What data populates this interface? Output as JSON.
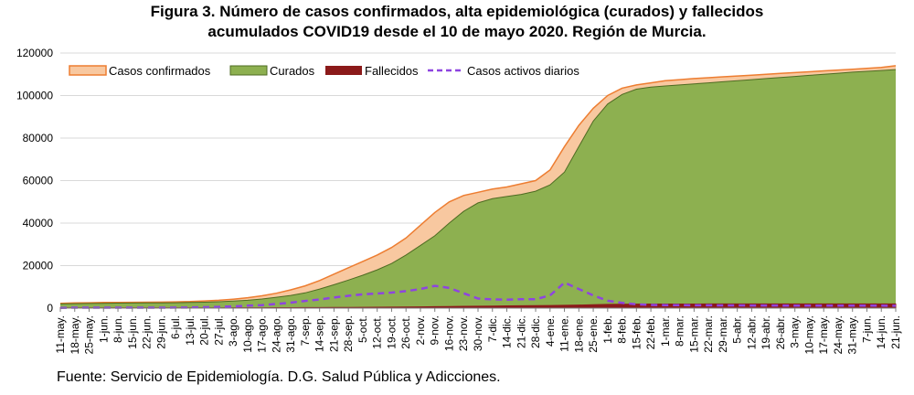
{
  "title_line1": "Figura 3. Número de casos confirmados, alta epidemiológica (curados) y fallecidos",
  "title_line2": "acumulados COVID19 desde el 10 de mayo 2020. Región de Murcia.",
  "source": "Fuente: Servicio de Epidemiología. D.G. Salud Pública y Adicciones.",
  "colors": {
    "confirmados_fill": "#f8c8a0",
    "confirmados_line": "#ed7d31",
    "curados_fill": "#8db050",
    "curados_line": "#4e6b22",
    "fallecidos": "#8b1a1a",
    "activos": "#8e44e0"
  },
  "chart_data": {
    "type": "area",
    "title": "Número de casos confirmados, alta epidemiológica (curados) y fallecidos acumulados COVID19 desde el 10 de mayo 2020. Región de Murcia.",
    "xlabel": "",
    "ylabel": "",
    "ylim": [
      0,
      120000
    ],
    "yticks": [
      "0",
      "20000",
      "40000",
      "60000",
      "80000",
      "100000",
      "120000"
    ],
    "ytick_values": [
      0,
      20000,
      40000,
      60000,
      80000,
      100000,
      120000
    ],
    "x_start": "11-may.",
    "x_end": "21-jun.",
    "categories": [
      "11-may.",
      "18-may.",
      "25-may.",
      "1-jun.",
      "8-jun.",
      "15-jun.",
      "22-jun.",
      "29-jun.",
      "6-jul.",
      "13-jul.",
      "20-jul.",
      "27-jul.",
      "3-ago.",
      "10-ago.",
      "17-ago.",
      "24-ago.",
      "31-ago.",
      "7-sep.",
      "14-sep.",
      "21-sep.",
      "28-sep.",
      "5-oct.",
      "12-oct.",
      "19-oct.",
      "26-oct.",
      "2-nov.",
      "9-nov.",
      "16-nov.",
      "23-nov.",
      "30-nov.",
      "7-dic.",
      "14-dic.",
      "21-dic.",
      "28-dic.",
      "4-ene.",
      "11-ene.",
      "18-ene.",
      "25-ene.",
      "1-feb.",
      "8-feb.",
      "15-feb.",
      "22-feb.",
      "1-mar.",
      "8-mar.",
      "15-mar.",
      "22-mar.",
      "29-mar.",
      "5-abr.",
      "12-abr.",
      "19-abr.",
      "26-abr.",
      "3-may.",
      "10-may.",
      "17-may.",
      "24-may.",
      "31-may.",
      "7-jun.",
      "14-jun.",
      "21-jun."
    ],
    "legend": [
      "Casos confirmados",
      "Curados",
      "Fallecidos",
      "Casos activos diarios"
    ],
    "legend_position": "top-left",
    "series": [
      {
        "name": "Casos confirmados",
        "kind": "area",
        "values": [
          2300,
          2450,
          2550,
          2650,
          2700,
          2750,
          2800,
          2850,
          2950,
          3100,
          3400,
          3700,
          4200,
          4900,
          5800,
          7000,
          8600,
          10500,
          13000,
          16000,
          19000,
          22000,
          25000,
          28500,
          33000,
          39000,
          45000,
          50000,
          53000,
          54500,
          56000,
          57000,
          58500,
          60000,
          65000,
          76000,
          86000,
          94000,
          100000,
          103500,
          105000,
          106000,
          107000,
          107500,
          108000,
          108400,
          108800,
          109200,
          109600,
          110000,
          110400,
          110800,
          111200,
          111600,
          112000,
          112400,
          112800,
          113200,
          114000
        ]
      },
      {
        "name": "Curados",
        "kind": "area",
        "values": [
          2000,
          2100,
          2200,
          2300,
          2350,
          2400,
          2450,
          2500,
          2550,
          2650,
          2800,
          3000,
          3300,
          3700,
          4300,
          5100,
          6000,
          7200,
          9000,
          11000,
          13200,
          15500,
          18000,
          21000,
          25000,
          29500,
          34000,
          40000,
          45500,
          49500,
          51500,
          52500,
          53500,
          55000,
          58000,
          64000,
          76000,
          88000,
          96000,
          100500,
          103000,
          104000,
          104500,
          105000,
          105500,
          106000,
          106500,
          107000,
          107500,
          108000,
          108500,
          109000,
          109500,
          110000,
          110500,
          111000,
          111400,
          111800,
          112200
        ]
      },
      {
        "name": "Fallecidos",
        "kind": "area",
        "values": [
          150,
          150,
          150,
          150,
          150,
          150,
          150,
          150,
          150,
          150,
          150,
          150,
          160,
          170,
          180,
          200,
          220,
          240,
          270,
          300,
          340,
          380,
          420,
          470,
          530,
          600,
          680,
          760,
          840,
          920,
          1000,
          1060,
          1120,
          1180,
          1250,
          1330,
          1450,
          1600,
          1750,
          1850,
          1900,
          1920,
          1940,
          1950,
          1955,
          1960,
          1960,
          1965,
          1965,
          1970,
          1970,
          1970,
          1975,
          1975,
          1980,
          1980,
          1980,
          1985,
          1985
        ]
      },
      {
        "name": "Casos activos diarios",
        "kind": "line",
        "values": [
          150,
          200,
          200,
          200,
          200,
          200,
          200,
          200,
          250,
          300,
          450,
          600,
          800,
          1150,
          1400,
          2000,
          2600,
          3400,
          4100,
          5000,
          5800,
          6500,
          6900,
          7300,
          8000,
          9000,
          10500,
          9500,
          7000,
          4500,
          4100,
          4000,
          4200,
          4200,
          6000,
          12000,
          9000,
          6000,
          3500,
          2500,
          1800,
          1500,
          1400,
          1400,
          1350,
          1350,
          1300,
          1300,
          1250,
          1250,
          1200,
          1200,
          1200,
          1200,
          1150,
          1150,
          1150,
          1150,
          1100
        ]
      }
    ]
  }
}
